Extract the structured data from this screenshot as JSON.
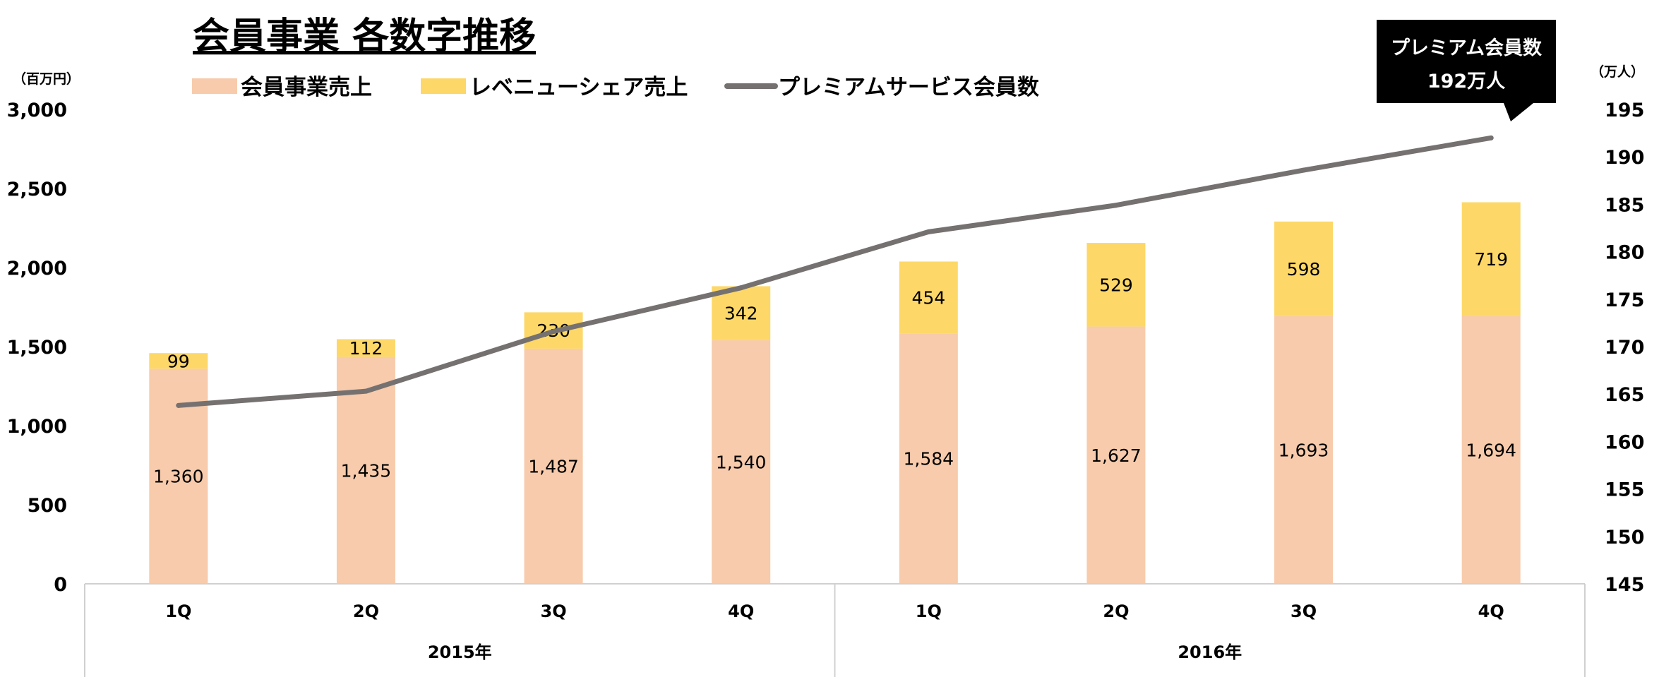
{
  "chart_data": {
    "type": "bar",
    "stacked": true,
    "title": "会員事業 各数字推移",
    "categories": [
      "1Q",
      "2Q",
      "3Q",
      "4Q",
      "1Q",
      "2Q",
      "3Q",
      "4Q"
    ],
    "groups": [
      {
        "label": "2015年",
        "span": 4
      },
      {
        "label": "2016年",
        "span": 4
      }
    ],
    "series": [
      {
        "name": "会員事業売上",
        "type": "bar",
        "axis": "left",
        "color": "#f7cbab",
        "values": [
          1360,
          1435,
          1487,
          1540,
          1584,
          1627,
          1693,
          1694
        ],
        "labels": [
          "1,360",
          "1,435",
          "1,487",
          "1,540",
          "1,584",
          "1,627",
          "1,693",
          "1,694"
        ]
      },
      {
        "name": "レベニューシェア売上",
        "type": "bar",
        "axis": "left",
        "color": "#fdd868",
        "values": [
          99,
          112,
          230,
          342,
          454,
          529,
          598,
          719
        ],
        "labels": [
          "99",
          "112",
          "230",
          "342",
          "454",
          "529",
          "598",
          "719"
        ]
      },
      {
        "name": "プレミアムサービス会員数",
        "type": "line",
        "axis": "right",
        "color": "#767171",
        "values": [
          163.8,
          165.3,
          171.6,
          176.2,
          182.1,
          184.9,
          188.6,
          192.0
        ]
      }
    ],
    "left_axis": {
      "unit": "（百万円）",
      "min": 0,
      "max": 3000,
      "step": 500,
      "tick_labels": [
        "0",
        "500",
        "1,000",
        "1,500",
        "2,000",
        "2,500",
        "3,000"
      ]
    },
    "right_axis": {
      "unit": "（万人）",
      "min": 145,
      "max": 195,
      "step": 5,
      "tick_labels": [
        "145",
        "150",
        "155",
        "160",
        "165",
        "170",
        "175",
        "180",
        "185",
        "190",
        "195"
      ]
    },
    "callout": {
      "line1": "プレミアム会員数",
      "line2": "192万人",
      "point_index": 7
    },
    "grid": false,
    "legend_position": "top-left"
  }
}
